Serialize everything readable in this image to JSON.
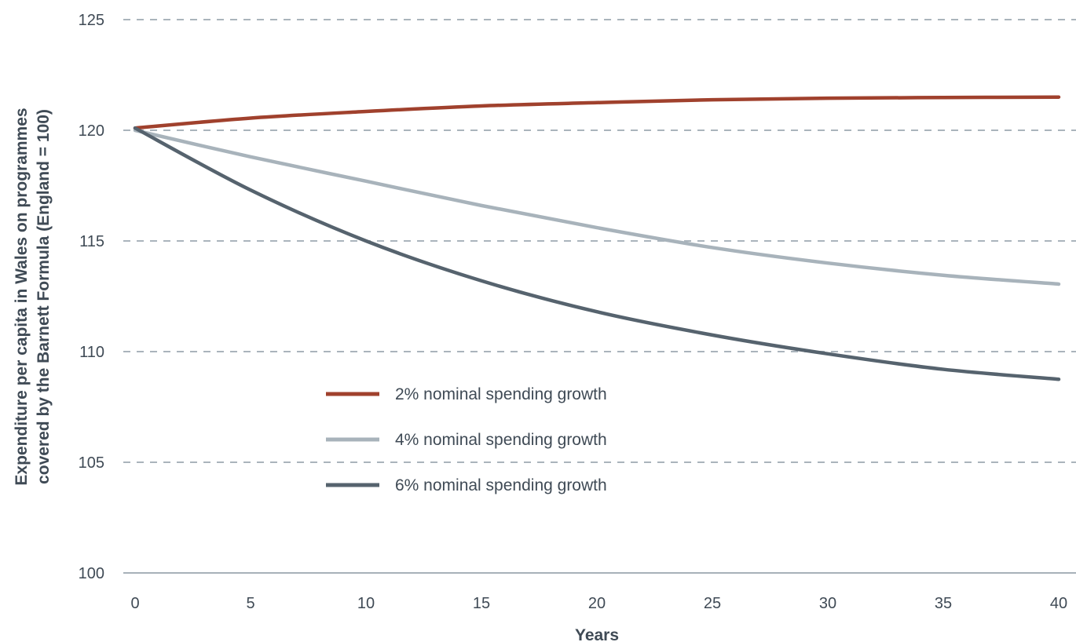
{
  "chart_data": {
    "type": "line",
    "title": "",
    "xlabel": "Years",
    "ylabel_line1": "Expenditure per capita in Wales on programmes",
    "ylabel_line2": "covered by the Barnett Formula (England = 100)",
    "xlim": [
      0,
      40
    ],
    "ylim": [
      100,
      125
    ],
    "xticks": [
      0,
      5,
      10,
      15,
      20,
      25,
      30,
      35,
      40
    ],
    "yticks": [
      100,
      105,
      110,
      115,
      120,
      125
    ],
    "grid": "horizontal-dashed",
    "legend_position": "center-left",
    "x": [
      0,
      5,
      10,
      15,
      20,
      25,
      30,
      35,
      40
    ],
    "series": [
      {
        "name": "2% nominal spending growth",
        "color": "#a0412d",
        "values": [
          120.1,
          120.55,
          120.85,
          121.1,
          121.25,
          121.38,
          121.45,
          121.48,
          121.5
        ]
      },
      {
        "name": "4% nominal spending growth",
        "color": "#a8b3bb",
        "values": [
          120.0,
          118.8,
          117.7,
          116.6,
          115.6,
          114.7,
          114.0,
          113.45,
          113.05
        ]
      },
      {
        "name": "6% nominal spending growth",
        "color": "#56636e",
        "values": [
          120.1,
          117.3,
          115.0,
          113.2,
          111.8,
          110.75,
          109.9,
          109.2,
          108.75
        ]
      }
    ]
  }
}
